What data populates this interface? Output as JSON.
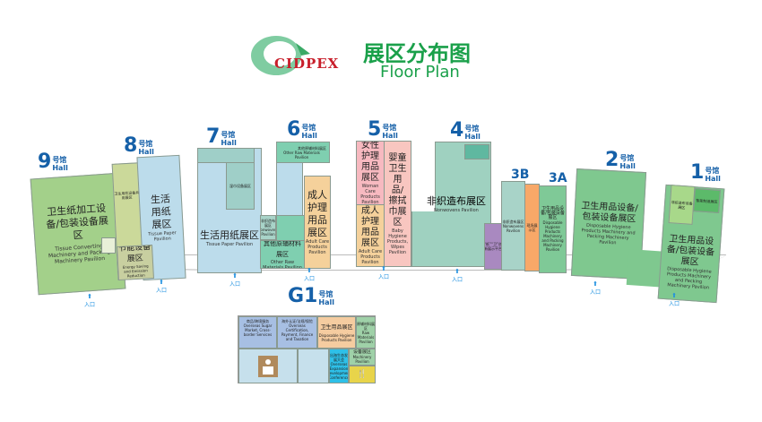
{
  "header": {
    "logo": "CIDPEX",
    "title_cn": "展区分布图",
    "title_en": "Floor Plan"
  },
  "colors": {
    "title_green": "#1aa04a",
    "hall_blue": "#1560a8",
    "entrance_blue": "#1e90e0",
    "green": "#7fc88f",
    "light_blue": "#bcdceb",
    "teal": "#9fd1c0",
    "pink": "#f7b9c0",
    "orange": "#f5d19b",
    "purple": "#a989c0"
  },
  "entrance": {
    "label": "入口",
    "icon": "arrow-up-icon"
  },
  "halls": {
    "h9": {
      "num": "9",
      "cn": "号馆",
      "en": "Hall",
      "zone_cn": "卫生纸加工设备/包装设备展区",
      "zone_en": "Tissue Converting Machinery and Packing Machinery Pavilion"
    },
    "h8": {
      "num": "8",
      "cn": "号馆",
      "en": "Hall",
      "zone1_cn": "卫生用机设备共用展区",
      "zone2_cn": "生活用纸展区",
      "zone2_en": "Tissue Paper Pavilion",
      "zone3_cn": "节能设备展区",
      "zone3_en": "Energy Saving and Emission Reduction Pavilion"
    },
    "h7": {
      "num": "7",
      "cn": "号馆",
      "en": "Hall",
      "zone1_cn": "生活用纸展区",
      "zone1_en": "Tissue Paper Pavilion",
      "zone2_cn": "湿巾设备展区",
      "zone3_cn": "非织造布展区",
      "zone3_en": "Nonwovens Pavilion"
    },
    "h6": {
      "num": "6",
      "cn": "号馆",
      "en": "Hall",
      "zone1_cn": "其他原辅材料展区",
      "zone1_en": "Other Raw Materials Pavilion",
      "zone2_cn": "成人护理用品展区",
      "zone2_en": "Adult Care Products Pavilion",
      "zone3_cn": "其他原辅材料展区",
      "zone3_en": "Other Raw Materials Pavilion"
    },
    "h5": {
      "num": "5",
      "cn": "号馆",
      "en": "Hall",
      "zone1_cn": "女性护理用品展区",
      "zone1_en": "Woman Care Products Pavilion",
      "zone2_cn": "成人护理用品展区",
      "zone2_en": "Adult Care Products Pavilion",
      "zone3_cn": "婴童卫生用品/擦拭巾展区",
      "zone3_en": "Baby Hygiene Products, Wipes Pavilion"
    },
    "h4": {
      "num": "4",
      "cn": "号馆",
      "en": "Hall",
      "zone_cn": "非织造布展区",
      "zone_en": "Nonwovens Pavilion",
      "zone2_cn": "“纸”“卫”创新展示平台"
    },
    "h3b": {
      "num": "3B",
      "zone_cn": "非织造布展区",
      "zone_en": "Nonwovens Pavilion"
    },
    "h3orange": {
      "zone_cn": "现场展示区"
    },
    "h3a": {
      "num": "3A",
      "zone_cn": "卫生用品设备/包装设备展区",
      "zone_en": "Disposable Hygiene Products Machinery and Packing Machinery Pavilion"
    },
    "h2": {
      "num": "2",
      "cn": "号馆",
      "en": "Hall",
      "zone_cn": "卫生用品设备/包装设备展区",
      "zone_en": "Disposable Hygiene Products Machinery and Packing Machinery Pavilion"
    },
    "h1": {
      "num": "1",
      "cn": "号馆",
      "en": "Hall",
      "zone1_cn": "非织造布设备展区",
      "zone2_cn": "智能制造展区",
      "zone_cn": "卫生用品设备/包装设备展区",
      "zone_en": "Disposable Hygiene Products Machinery and Packing Machinery Pavilion"
    },
    "g1": {
      "num": "G1",
      "cn": "号馆",
      "en": "Hall",
      "z1_cn": "商品/跨境服务",
      "z1_en": "Overseas Sugar Market, Cross-border Services",
      "z2_cn": "海外认证/法规/保险",
      "z2_en": "Overseas Certification, Payment, Finance and Taxation",
      "z3_cn": "卫生用品展区",
      "z3_en": "Disposable Hygiene Products Pavilion",
      "z4_cn": "原辅材料展区",
      "z4_en": "Raw Materials Pavilion",
      "z5_cn": "出海生态发展大会",
      "z5_en": "Overseas Expansion Development Conference",
      "z6_cn": "设备展区",
      "z6_en": "Machinery Pavilion"
    }
  }
}
